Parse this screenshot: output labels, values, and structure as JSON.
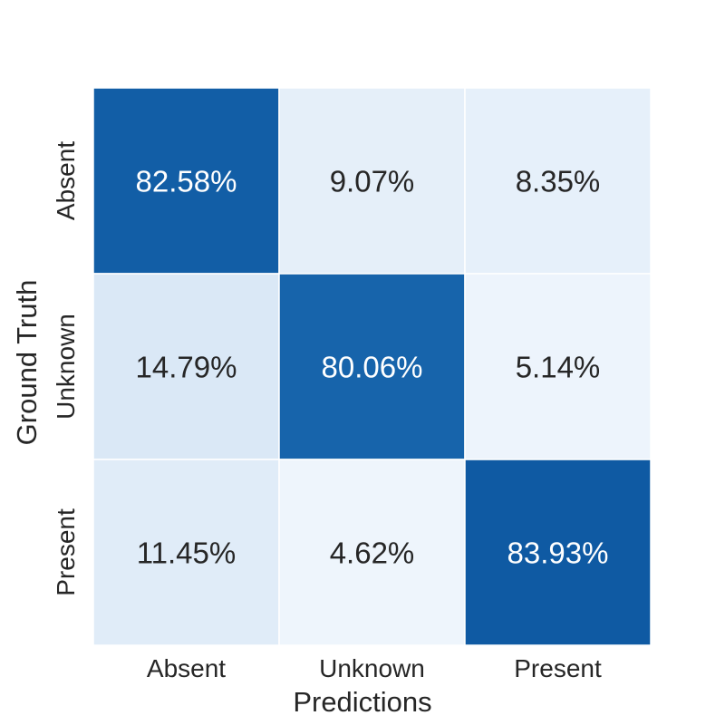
{
  "chart_data": {
    "type": "heatmap",
    "title": "",
    "xlabel": "Predictions",
    "ylabel": "Ground Truth",
    "x_categories": [
      "Absent",
      "Unknown",
      "Present"
    ],
    "y_categories": [
      "Absent",
      "Unknown",
      "Present"
    ],
    "values": [
      [
        82.58,
        9.07,
        8.35
      ],
      [
        14.79,
        80.06,
        5.14
      ],
      [
        11.45,
        4.62,
        83.93
      ]
    ],
    "labels": [
      [
        "82.58%",
        "9.07%",
        "8.35%"
      ],
      [
        "14.79%",
        "80.06%",
        "5.14%"
      ],
      [
        "11.45%",
        "4.62%",
        "83.93%"
      ]
    ],
    "colormap": "Blues",
    "color_range": [
      0,
      100
    ],
    "colorbar": false,
    "grid": false
  }
}
